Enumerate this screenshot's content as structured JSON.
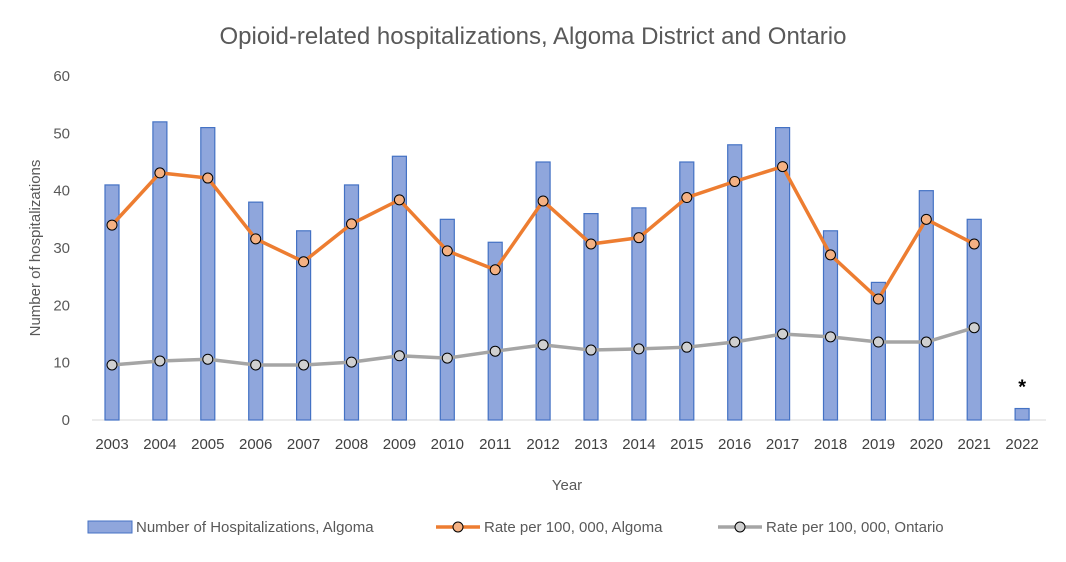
{
  "chart_data": {
    "type": "bar+line",
    "title": "Opioid-related hospitalizations, Algoma District and Ontario",
    "xlabel": "Year",
    "ylabel": "Number of hospitalizations",
    "ylim": [
      0,
      60
    ],
    "yticks": [
      0,
      10,
      20,
      30,
      40,
      50,
      60
    ],
    "grid": false,
    "legend": "bottom",
    "categories": [
      "2003",
      "2004",
      "2005",
      "2006",
      "2007",
      "2008",
      "2009",
      "2010",
      "2011",
      "2012",
      "2013",
      "2014",
      "2015",
      "2016",
      "2017",
      "2018",
      "2019",
      "2020",
      "2021",
      "2022"
    ],
    "series": [
      {
        "name": "Number of Hospitalizations, Algoma",
        "type": "bar",
        "color": "#8fa6dc",
        "values": [
          41,
          52,
          51,
          38,
          33,
          41,
          46,
          35,
          31,
          45,
          36,
          37,
          45,
          48,
          51,
          33,
          24,
          40,
          35,
          2
        ]
      },
      {
        "name": "Rate per 100, 000, Algoma",
        "type": "line",
        "color": "#ed7d31",
        "values": [
          34.0,
          43.1,
          42.2,
          31.6,
          27.6,
          34.2,
          38.4,
          29.5,
          26.2,
          38.2,
          30.7,
          31.8,
          38.8,
          41.6,
          44.2,
          28.8,
          21.1,
          35.0,
          30.7,
          null
        ]
      },
      {
        "name": "Rate per 100, 000, Ontario",
        "type": "line",
        "color": "#a5a5a5",
        "values": [
          9.6,
          10.3,
          10.6,
          9.6,
          9.6,
          10.1,
          11.2,
          10.8,
          12.0,
          13.1,
          12.2,
          12.4,
          12.7,
          13.6,
          15.0,
          14.5,
          13.6,
          13.6,
          16.1,
          null
        ]
      }
    ],
    "annotations": [
      {
        "category": "2022",
        "text": "*"
      }
    ]
  }
}
